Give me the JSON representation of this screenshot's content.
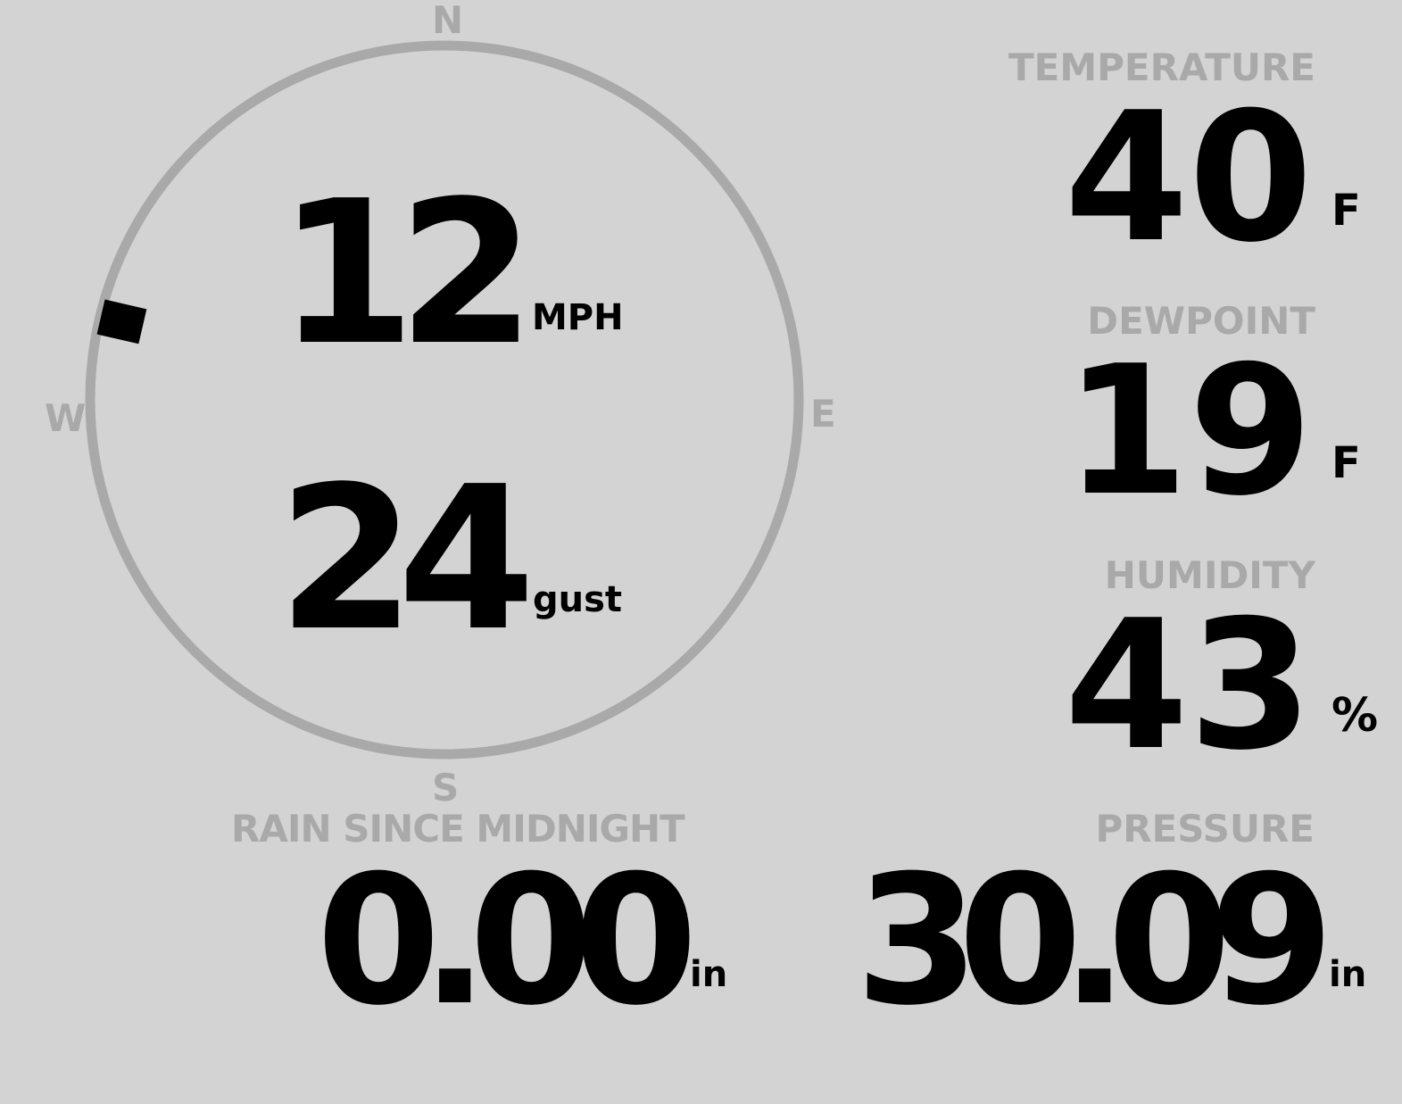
{
  "wind": {
    "compass": {
      "n": "N",
      "e": "E",
      "s": "S",
      "w": "W"
    },
    "direction_deg": 283,
    "speed": "12",
    "speed_unit": "MPH",
    "gust": "24",
    "gust_unit": "gust"
  },
  "temperature": {
    "label": "TEMPERATURE",
    "value": "40",
    "unit": "F"
  },
  "dewpoint": {
    "label": "DEWPOINT",
    "value": "19",
    "unit": "F"
  },
  "humidity": {
    "label": "HUMIDITY",
    "value": "43",
    "unit": "%"
  },
  "rain": {
    "label": "RAIN SINCE MIDNIGHT",
    "value": "0.00",
    "unit": "in"
  },
  "pressure": {
    "label": "PRESSURE",
    "value": "30.09",
    "unit": "in"
  },
  "colors": {
    "background": "#d3d3d3",
    "ring": "#a9a9a9",
    "label": "#a9a9a9",
    "value": "#000000"
  }
}
